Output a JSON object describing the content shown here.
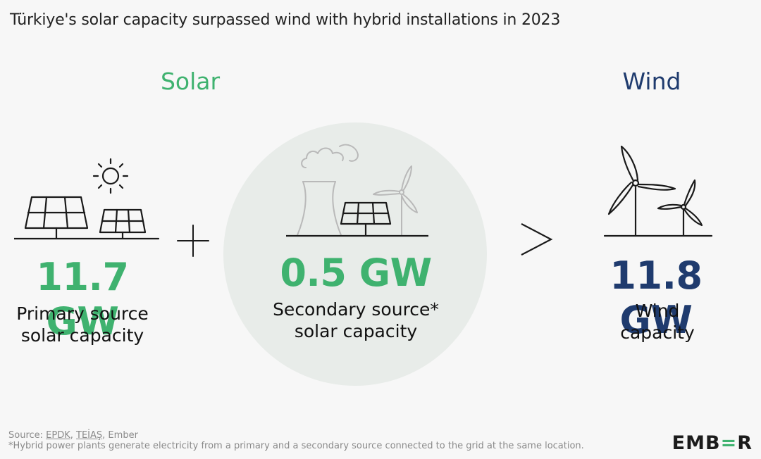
{
  "title": "Türkiye's solar capacity surpassed wind with hybrid installations in 2023",
  "solar": {
    "heading": "Solar",
    "primary_value": "11.7 GW",
    "primary_line1": "Primary source",
    "primary_line2": "solar capacity",
    "secondary_value": "0.5 GW",
    "secondary_line1": "Secondary source*",
    "secondary_line2": "solar capacity"
  },
  "wind": {
    "heading": "Wind",
    "value": "11.8 GW",
    "line1": "Wind",
    "line2": "capacity"
  },
  "footer": {
    "source_prefix": "Source: ",
    "source_link1": "EPDK",
    "source_sep": ", ",
    "source_link2": "TEİAŞ",
    "source_suffix": ", Ember",
    "note": "*Hybrid power plants generate electricity from a primary and a secondary source connected to the grid at the same location."
  },
  "logo": {
    "part1": "EMB",
    "part2": "=",
    "part3": "R"
  },
  "colors": {
    "solar_green": "#3fb26f",
    "wind_navy": "#1f3b6e",
    "circle_bg": "#e8ece9",
    "background": "#f7f7f7"
  },
  "icons": [
    "solar-panels-icon",
    "sun-icon",
    "plus-icon",
    "power-plant-icon",
    "greater-than-icon",
    "wind-turbines-icon"
  ]
}
